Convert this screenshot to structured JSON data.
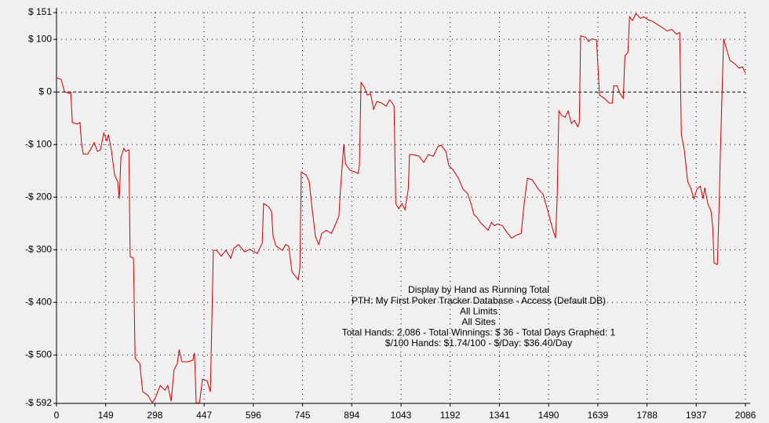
{
  "chart_data": {
    "type": "line",
    "color": "#cc0000",
    "grid": true,
    "annotations": [
      "Display by Hand as Running Total",
      "PTH: My First Poker Tracker Database - Access (Default DB)",
      "All Limits",
      "All Sites",
      "Total Hands: 2,086 - Total Winnings: $ 36 - Total Days Graphed: 1",
      "$/100 Hands: $1.74/100 - $/Day: $36.40/Day"
    ],
    "xlim": [
      0,
      2086
    ],
    "xticks": [
      0,
      149,
      298,
      447,
      596,
      745,
      894,
      1043,
      1192,
      1341,
      1490,
      1639,
      1788,
      1937,
      2086
    ],
    "ylim": [
      -592,
      151
    ],
    "yticks": [
      {
        "value": 151,
        "label": "$ 151"
      },
      {
        "value": 100,
        "label": "$ 100"
      },
      {
        "value": 0,
        "label": "$ 0"
      },
      {
        "value": -100,
        "label": "-$ 100"
      },
      {
        "value": -200,
        "label": "-$ 200"
      },
      {
        "value": -300,
        "label": "-$ 300"
      },
      {
        "value": -400,
        "label": "-$ 400"
      },
      {
        "value": -500,
        "label": "-$ 500"
      },
      {
        "value": -592,
        "label": "-$ 592"
      }
    ],
    "x": [
      0,
      14,
      24,
      38,
      43,
      48,
      62,
      71,
      76,
      81,
      95,
      105,
      114,
      124,
      133,
      143,
      152,
      157,
      166,
      176,
      185,
      190,
      195,
      204,
      209,
      219,
      223,
      233,
      238,
      252,
      261,
      276,
      290,
      299,
      314,
      328,
      337,
      347,
      356,
      366,
      371,
      380,
      399,
      413,
      418,
      423,
      433,
      442,
      456,
      466,
      475,
      485,
      499,
      513,
      528,
      537,
      551,
      570,
      585,
      599,
      608,
      623,
      627,
      642,
      651,
      656,
      665,
      684,
      694,
      703,
      713,
      732,
      737,
      741,
      756,
      765,
      775,
      784,
      794,
      803,
      817,
      832,
      841,
      855,
      860,
      865,
      870,
      875,
      889,
      903,
      913,
      917,
      922,
      932,
      941,
      951,
      960,
      970,
      984,
      998,
      1008,
      1017,
      1022,
      1027,
      1036,
      1046,
      1055,
      1065,
      1069,
      1079,
      1098,
      1112,
      1126,
      1141,
      1155,
      1164,
      1179,
      1188,
      1202,
      1217,
      1231,
      1245,
      1255,
      1264,
      1274,
      1283,
      1293,
      1307,
      1317,
      1326,
      1336,
      1350,
      1364,
      1378,
      1393,
      1407,
      1416,
      1426,
      1440,
      1459,
      1473,
      1488,
      1502,
      1511,
      1516,
      1521,
      1530,
      1540,
      1549,
      1559,
      1568,
      1578,
      1583,
      1587,
      1602,
      1611,
      1621,
      1635,
      1644,
      1659,
      1673,
      1683,
      1687,
      1697,
      1706,
      1716,
      1721,
      1730,
      1735,
      1744,
      1754,
      1768,
      1778,
      1792,
      1806,
      1820,
      1835,
      1849,
      1863,
      1877,
      1887,
      1892,
      1901,
      1911,
      1920,
      1930,
      1939,
      1949,
      1958,
      1963,
      1972,
      1982,
      1987,
      1991,
      2001,
      2006,
      2010,
      2015,
      2020,
      2029,
      2039,
      2053,
      2067,
      2077,
      2086
    ],
    "values": [
      27,
      24,
      1,
      -3,
      0,
      -58,
      -61,
      -58,
      -99,
      -118,
      -118,
      -107,
      -96,
      -113,
      -110,
      -78,
      -93,
      -81,
      -110,
      -158,
      -170,
      -203,
      -125,
      -107,
      -113,
      -110,
      -313,
      -316,
      -506,
      -516,
      -570,
      -576,
      -591,
      -582,
      -558,
      -567,
      -558,
      -588,
      -528,
      -516,
      -490,
      -513,
      -513,
      -510,
      -496,
      -591,
      -591,
      -546,
      -549,
      -570,
      -301,
      -301,
      -312,
      -301,
      -316,
      -297,
      -290,
      -304,
      -299,
      -304,
      -307,
      -287,
      -212,
      -218,
      -227,
      -275,
      -293,
      -301,
      -290,
      -293,
      -342,
      -357,
      -334,
      -152,
      -158,
      -170,
      -227,
      -275,
      -290,
      -269,
      -263,
      -269,
      -257,
      -236,
      -182,
      -140,
      -99,
      -137,
      -149,
      -152,
      -155,
      -140,
      18,
      9,
      -6,
      -3,
      -33,
      -18,
      -21,
      -27,
      -15,
      -21,
      -27,
      -212,
      -222,
      -212,
      -224,
      -185,
      -119,
      -119,
      -122,
      -134,
      -119,
      -122,
      -104,
      -101,
      -113,
      -140,
      -149,
      -164,
      -185,
      -193,
      -212,
      -233,
      -239,
      -248,
      -254,
      -263,
      -248,
      -254,
      -251,
      -254,
      -267,
      -278,
      -272,
      -269,
      -212,
      -164,
      -167,
      -185,
      -194,
      -227,
      -260,
      -278,
      -200,
      -36,
      -45,
      -48,
      -36,
      -60,
      -54,
      -66,
      -58,
      107,
      104,
      96,
      101,
      99,
      -6,
      -12,
      -21,
      -21,
      12,
      12,
      -3,
      -12,
      69,
      75,
      143,
      136,
      149,
      140,
      143,
      137,
      134,
      128,
      122,
      116,
      119,
      110,
      113,
      -81,
      -110,
      -170,
      -182,
      -203,
      -185,
      -179,
      -203,
      -182,
      -212,
      -227,
      -257,
      -325,
      -328,
      -224,
      -119,
      -6,
      101,
      81,
      60,
      54,
      45,
      48,
      36
    ]
  }
}
